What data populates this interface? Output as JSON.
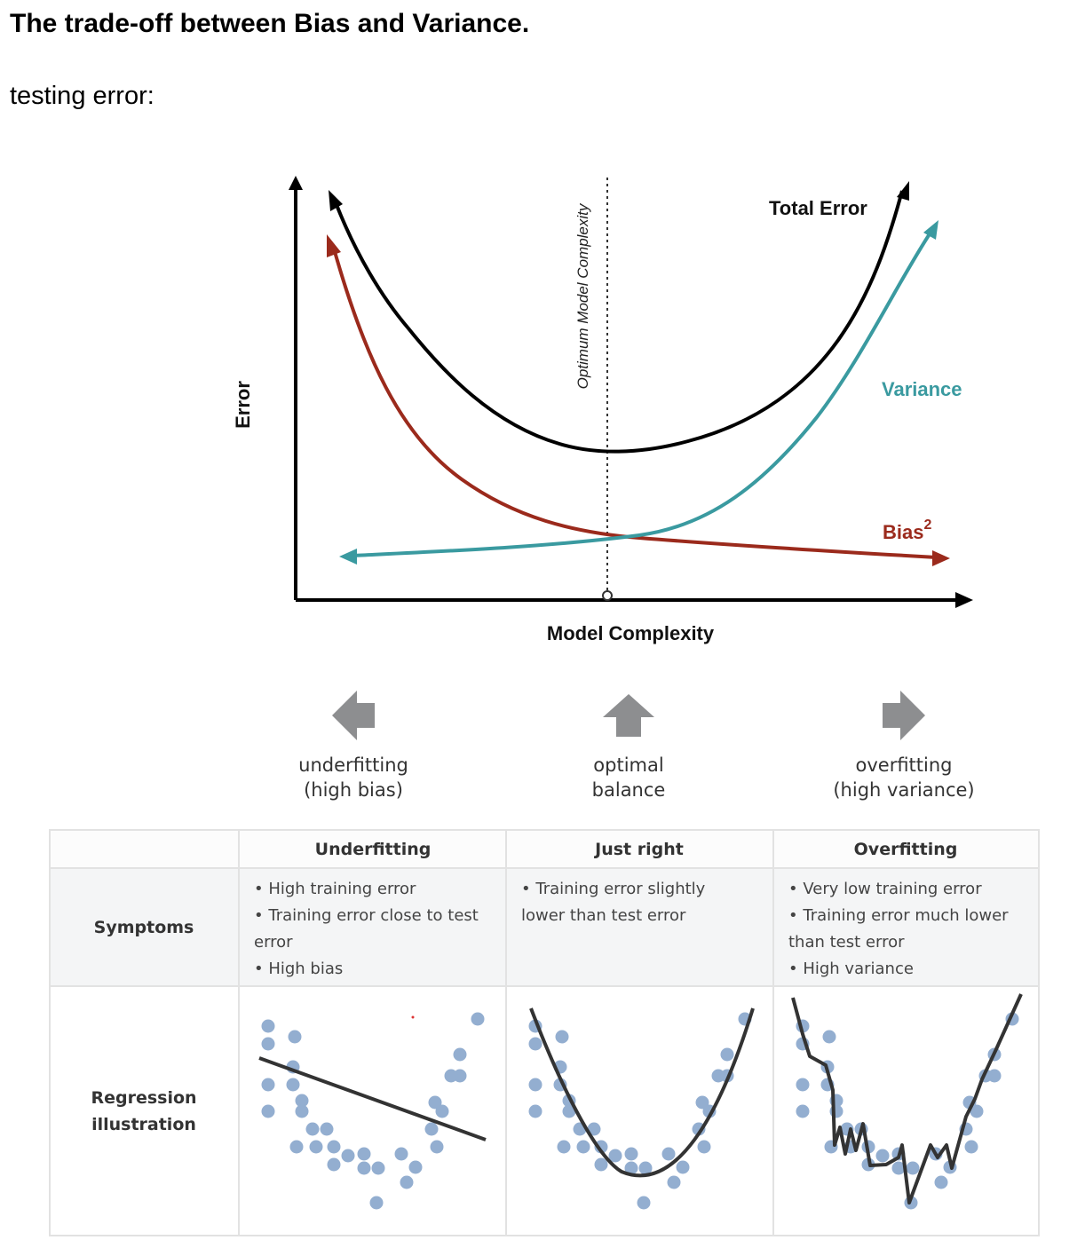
{
  "heading": "The trade-off between Bias and Variance.",
  "subtitle": "testing error:",
  "graph": {
    "y_axis_label": "Error",
    "x_axis_label": "Model Complexity",
    "optimum_label": "Optimum Model Complexity",
    "curves": [
      {
        "name": "Total Error",
        "color": "#000000"
      },
      {
        "name": "Variance",
        "color": "#3a9aa0"
      },
      {
        "name": "Bias",
        "superscript": "2",
        "color": "#9b2a1c"
      }
    ]
  },
  "directions": [
    {
      "icon": "arrow-left-icon",
      "line1": "underfitting",
      "line2": "(high bias)"
    },
    {
      "icon": "arrow-up-icon",
      "line1": "optimal",
      "line2": "balance"
    },
    {
      "icon": "arrow-right-icon",
      "line1": "overfitting",
      "line2": "(high variance)"
    }
  ],
  "table": {
    "columns": [
      "Underfitting",
      "Just right",
      "Overfitting"
    ],
    "symptoms_label": "Symptoms",
    "symptoms": [
      [
        "• High training error",
        "• Training error close to test",
        "error",
        "• High bias"
      ],
      [
        "• Training error slightly",
        "lower than test error"
      ],
      [
        "• Very low training error",
        "• Training error much lower",
        "than test error",
        "• High variance"
      ]
    ],
    "regression_label_line1": "Regression",
    "regression_label_line2": "illustration"
  },
  "colors": {
    "point": "#93aed0",
    "fit_line": "#333333",
    "border": "#e2e2e2",
    "row_shade": "#f4f5f6"
  }
}
